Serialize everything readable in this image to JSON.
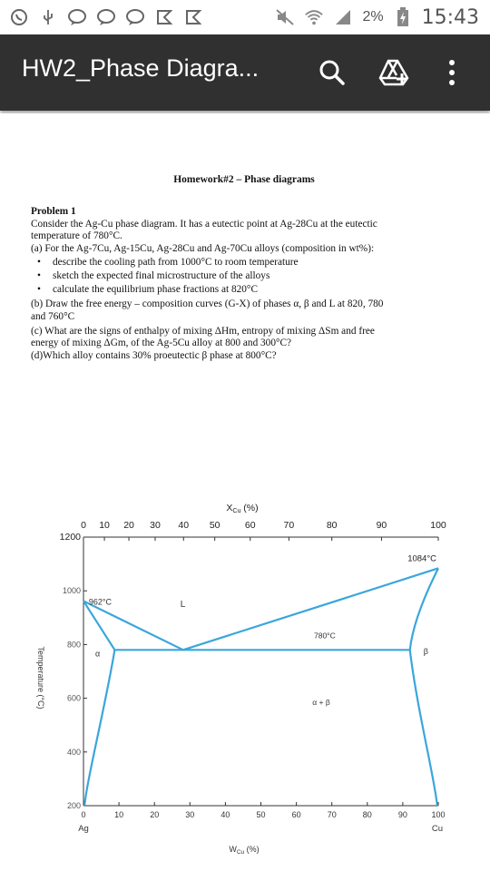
{
  "statusbar": {
    "battery": "2%",
    "time": "15:43"
  },
  "appbar": {
    "title": "HW2_Phase Diagra...",
    "icons": [
      "search-icon",
      "drive-add-icon",
      "overflow-menu-icon"
    ]
  },
  "document": {
    "title": "Homework#2 – Phase diagrams",
    "problem_heading": "Problem 1",
    "intro_line1": "Consider the Ag-Cu phase diagram. It has a eutectic point at Ag-28Cu at the eutectic",
    "intro_line2": "temperature of 780°C.",
    "part_a": "(a) For the Ag-7Cu, Ag-15Cu, Ag-28Cu and Ag-70Cu alloys (composition in wt%):",
    "bullets": [
      "describe the cooling path from 1000°C to room temperature",
      "sketch the expected final microstructure of the alloys",
      "calculate the equilibrium phase fractions at 820°C"
    ],
    "part_b_line1": "(b) Draw the free energy – composition curves (G-X) of phases α, β and L at 820, 780",
    "part_b_line2": "and 760°C",
    "part_c_line1": "(c) What are the signs of enthalpy of mixing ΔHm, entropy of mixing ΔSm and free",
    "part_c_line2": "energy of mixing ΔGm, of the Ag-5Cu alloy at 800 and 300°C?",
    "part_d": "(d)Which alloy contains 30% proeutectic β phase at 800°C?"
  },
  "chart_data": {
    "type": "phase-diagram",
    "top_axis_label": "XCu (%)",
    "top_ticks": [
      "0",
      "10",
      "20",
      "30",
      "40",
      "50",
      "60",
      "70",
      "80",
      "90",
      "100"
    ],
    "top_tick_wt": [
      0,
      5.9,
      12.8,
      20.2,
      28.2,
      37,
      47,
      57.9,
      70,
      84,
      100
    ],
    "bottom_axis_label": "WCu (%)",
    "bottom_ticks": [
      "0",
      "10",
      "20",
      "30",
      "40",
      "50",
      "60",
      "70",
      "80",
      "90",
      "100"
    ],
    "bottom_left_element": "Ag",
    "bottom_right_element": "Cu",
    "y_axis_label": "Temperature (°C)",
    "y_ticks": [
      "1200",
      "1000",
      "800",
      "600",
      "400",
      "200"
    ],
    "y_range": [
      200,
      1200
    ],
    "x_range": [
      0,
      100
    ],
    "annotations": {
      "ag_melting": "962°C",
      "cu_melting": "1084°C",
      "eutectic_temp": "780°C",
      "liquid": "L",
      "alpha": "α",
      "beta": "β",
      "two_phase": "α + β"
    },
    "key_points": {
      "ag_melting_point": [
        0,
        962
      ],
      "cu_melting_point": [
        100,
        1084
      ],
      "eutectic_point": [
        28.1,
        780
      ],
      "alpha_max_solubility": [
        8.8,
        780
      ],
      "beta_max_solubility": [
        92,
        780
      ]
    },
    "line_color": "#3aa6dc"
  }
}
